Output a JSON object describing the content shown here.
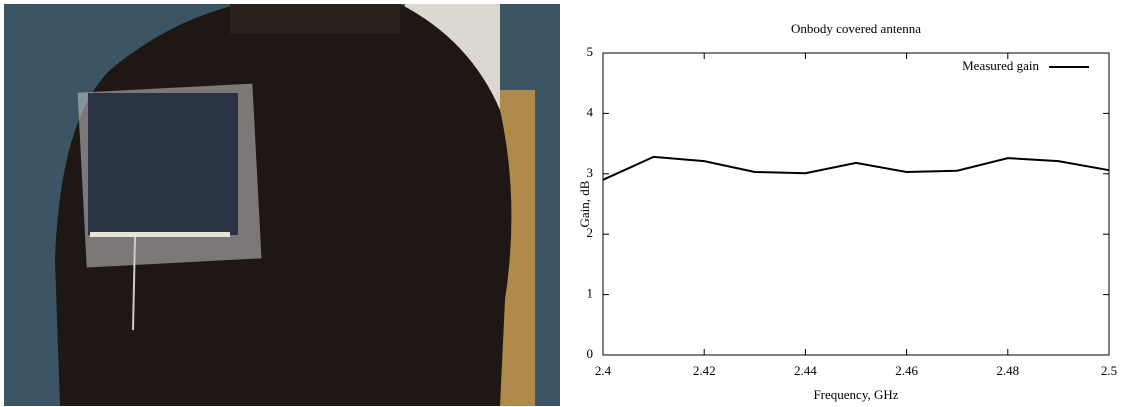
{
  "chart_data": {
    "type": "line",
    "title": "Onbody covered antenna",
    "xlabel": "Frequency, GHz",
    "ylabel": "Gain, dB",
    "x": [
      2.4,
      2.41,
      2.42,
      2.43,
      2.44,
      2.45,
      2.46,
      2.47,
      2.48,
      2.49,
      2.5
    ],
    "series": [
      {
        "name": "Measured gain",
        "color": "#000000",
        "values": [
          2.9,
          3.28,
          3.21,
          3.03,
          3.01,
          3.18,
          3.03,
          3.05,
          3.26,
          3.21,
          3.06
        ]
      }
    ],
    "xlim": [
      2.4,
      2.5
    ],
    "xticks": [
      2.4,
      2.42,
      2.44,
      2.46,
      2.48,
      2.5
    ],
    "ylim": [
      0,
      5
    ],
    "yticks": [
      0,
      1,
      2,
      3,
      4,
      5
    ],
    "legend": "top-right",
    "grid": false
  }
}
